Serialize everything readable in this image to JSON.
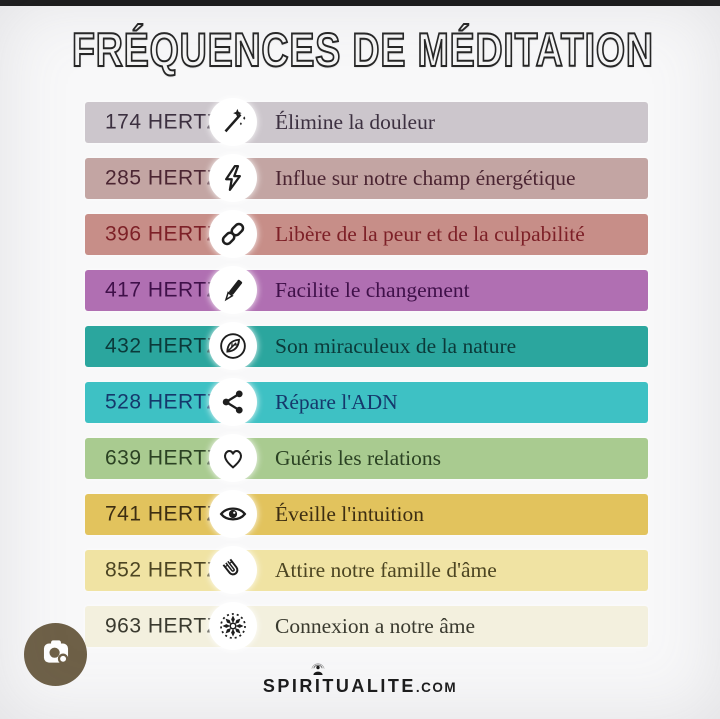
{
  "title": "FRÉQUENCES DE MÉDITATION",
  "colors": {
    "page_bg": "#f8f8f9",
    "top_strip": "#161616",
    "icon_circle": "#ffffff",
    "icon_stroke": "#1e1e1e",
    "lens_badge_bg": "#6e6047",
    "logo_text": "#1b1b1b"
  },
  "rows": [
    {
      "freq": "174 HERTZ",
      "icon": "wand-icon",
      "desc": "Élimine la douleur",
      "bg": "#ccc6cc",
      "fg": "#3c3040"
    },
    {
      "freq": "285 HERTZ",
      "icon": "lightning-icon",
      "desc": "Influe sur notre champ énergétique",
      "bg": "#c3a5a3",
      "fg": "#4b2532"
    },
    {
      "freq": "396 HERTZ",
      "icon": "chain-icon",
      "desc": "Libère de la peur et de la culpabilité",
      "bg": "#c78e88",
      "fg": "#7d2027"
    },
    {
      "freq": "417 HERTZ",
      "icon": "pencil-icon",
      "desc": "Facilite le changement",
      "bg": "#b06fb2",
      "fg": "#3f1049"
    },
    {
      "freq": "432 HERTZ",
      "icon": "leaf-icon",
      "desc": "Son miraculeux de la nature",
      "bg": "#2ba69e",
      "fg": "#0b3a3a"
    },
    {
      "freq": "528 HERTZ",
      "icon": "share-icon",
      "desc": "Répare l'ADN",
      "bg": "#3ec1c4",
      "fg": "#15386b"
    },
    {
      "freq": "639 HERTZ",
      "icon": "heart-icon",
      "desc": "Guéris les relations",
      "bg": "#a9cb90",
      "fg": "#2b4223"
    },
    {
      "freq": "741 HERTZ",
      "icon": "eye-icon",
      "desc": "Éveille l'intuition",
      "bg": "#e2c35d",
      "fg": "#3d2e12"
    },
    {
      "freq": "852 HERTZ",
      "icon": "magnet-icon",
      "desc": "Attire notre famille d'âme",
      "bg": "#f0e3a3",
      "fg": "#4c4522"
    },
    {
      "freq": "963 HERTZ",
      "icon": "mandala-icon",
      "desc": "Connexion a notre âme",
      "bg": "#f3f0de",
      "fg": "#3a3a2f"
    }
  ],
  "footer": {
    "brand": "SPIRITUALITE",
    "suffix": ".COM"
  }
}
